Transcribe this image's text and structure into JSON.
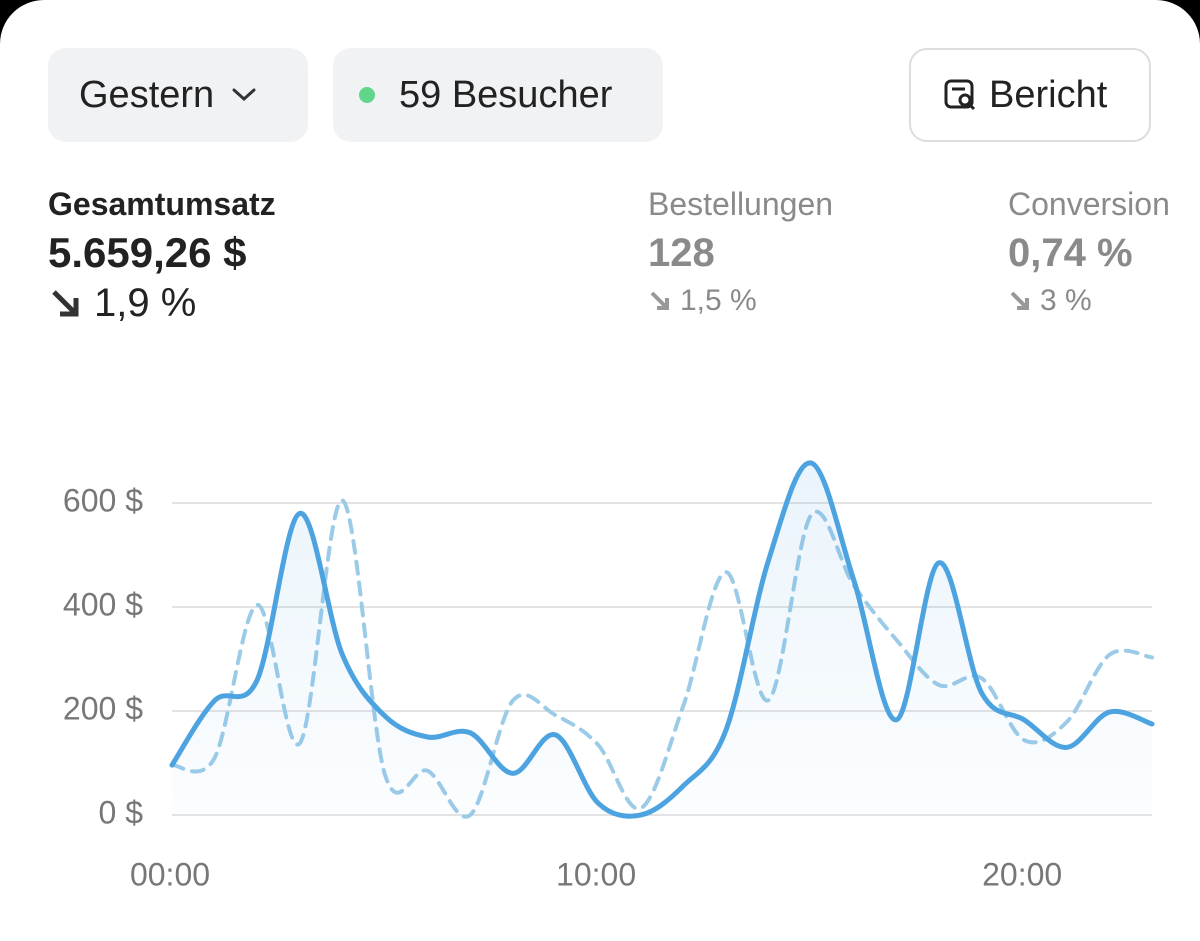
{
  "toolbar": {
    "period": "Gestern",
    "visitors": "59 Besucher",
    "report": "Bericht"
  },
  "metrics": [
    {
      "label": "Gesamtumsatz",
      "value": "5.659,26 $",
      "change": "1,9 %"
    },
    {
      "label": "Bestellungen",
      "value": "128",
      "change": "1,5 %"
    },
    {
      "label": "Conversion",
      "value": "0,74 %",
      "change": "3 %"
    }
  ],
  "chart_data": {
    "type": "line",
    "categories": [
      "00:00",
      null,
      null,
      null,
      null,
      null,
      null,
      null,
      null,
      null,
      "10:00",
      null,
      null,
      null,
      null,
      null,
      null,
      null,
      null,
      null,
      "20:00",
      null,
      null,
      null
    ],
    "series": [
      {
        "color": "#4da3e0",
        "style": "solid",
        "fill": true,
        "values": [
          96,
          220,
          260,
          580,
          308,
          190,
          150,
          158,
          80,
          154,
          23,
          0,
          56,
          163,
          490,
          677,
          452,
          183,
          485,
          235,
          183,
          130,
          198,
          175
        ]
      },
      {
        "color": "#9ccbe8",
        "style": "dashed",
        "values": [
          96,
          110,
          404,
          138,
          605,
          77,
          85,
          0,
          220,
          192,
          135,
          13,
          210,
          467,
          221,
          577,
          442,
          337,
          250,
          263,
          144,
          179,
          308,
          303
        ]
      }
    ],
    "ylim": [
      0,
      700
    ],
    "yticks": [
      {
        "value": 0,
        "label": "0 $"
      },
      {
        "value": 200,
        "label": "200 $"
      },
      {
        "value": 400,
        "label": "400 $"
      },
      {
        "value": 600,
        "label": "600 $"
      }
    ],
    "grid": true
  }
}
